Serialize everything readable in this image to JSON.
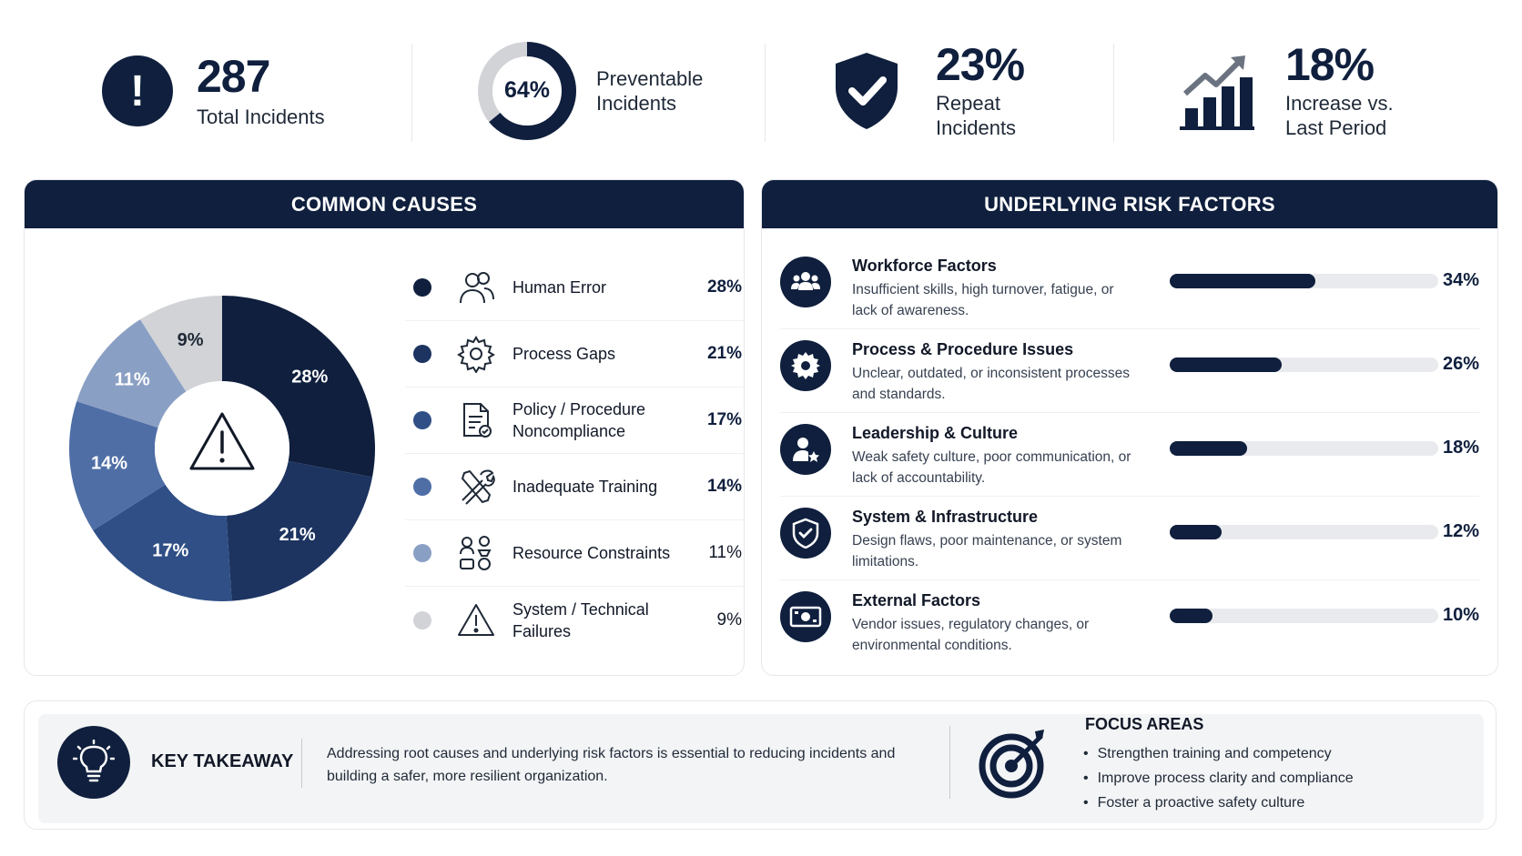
{
  "kpis": {
    "total": {
      "value": "287",
      "label": "Total Incidents",
      "icon": "exclamation-icon"
    },
    "preventable": {
      "value": "64%",
      "fraction": 0.64,
      "label_line1": "Preventable",
      "label_line2": "Incidents"
    },
    "repeat": {
      "value": "23%",
      "label_line1": "Repeat",
      "label_line2": "Incidents",
      "icon": "shield-check-icon"
    },
    "increase": {
      "value": "18%",
      "label_line1": "Increase vs.",
      "label_line2": "Last Period",
      "icon": "growth-chart-icon"
    }
  },
  "causes_panel": {
    "title": "COMMON CAUSES"
  },
  "risk_panel": {
    "title": "UNDERLYING RISK FACTORS"
  },
  "causes": [
    {
      "label": "Human Error",
      "value": "28%",
      "icon": "people-icon"
    },
    {
      "label": "Process Gaps",
      "value": "21%",
      "icon": "gear-icon"
    },
    {
      "label": "Policy / Procedure Noncompliance",
      "value": "17%",
      "icon": "document-check-icon"
    },
    {
      "label": "Inadequate Training",
      "value": "14%",
      "icon": "tools-icon"
    },
    {
      "label": "Resource Constraints",
      "value": "11%",
      "icon": "resources-icon"
    },
    {
      "label": "System / Technical Failures",
      "value": "9%",
      "icon": "warning-icon"
    }
  ],
  "risk_factors": [
    {
      "title": "Workforce Factors",
      "desc": "Insufficient skills, high turnover, fatigue, or lack of awareness.",
      "value": "34%",
      "icon": "group-icon"
    },
    {
      "title": "Process & Procedure Issues",
      "desc": "Unclear, outdated, or inconsistent processes and standards.",
      "value": "26%",
      "icon": "gear-icon"
    },
    {
      "title": "Leadership & Culture",
      "desc": "Weak safety culture, poor communication, or lack of accountability.",
      "value": "18%",
      "icon": "leader-star-icon"
    },
    {
      "title": "System & Infrastructure",
      "desc": "Design flaws, poor maintenance, or system limitations.",
      "value": "12%",
      "icon": "shield-check-icon"
    },
    {
      "title": "External Factors",
      "desc": "Vendor issues, regulatory changes, or environmental conditions.",
      "value": "10%",
      "icon": "money-icon"
    }
  ],
  "takeaway": {
    "title": "KEY TAKEAWAY",
    "text": "Addressing root causes and underlying risk factors is essential to reducing incidents and building a safer, more resilient organization.",
    "icon": "lightbulb-icon"
  },
  "focus": {
    "title": "FOCUS AREAS",
    "items": [
      "Strengthen training and competency",
      "Improve process clarity and compliance",
      "Foster a proactive safety culture"
    ],
    "icon": "target-icon"
  },
  "colors": {
    "navy": "#0f1f3d",
    "slices": [
      "#0f1f3d",
      "#1d3461",
      "#2f4f86",
      "#4f6ea6",
      "#8a9fc4",
      "#d1d3d7"
    ],
    "dots": [
      "#0f1f3d",
      "#1d3461",
      "#2f4f86",
      "#4f6ea6",
      "#8a9fc4",
      "#d1d3d7"
    ]
  },
  "chart_data": [
    {
      "type": "pie",
      "title": "COMMON CAUSES",
      "categories": [
        "Human Error",
        "Process Gaps",
        "Policy / Procedure Noncompliance",
        "Inadequate Training",
        "Resource Constraints",
        "System / Technical Failures"
      ],
      "values": [
        28,
        21,
        17,
        14,
        11,
        9
      ],
      "labels": [
        "28%",
        "21%",
        "17%",
        "14%",
        "11%",
        "9%"
      ],
      "donut": true
    },
    {
      "type": "bar",
      "orientation": "horizontal",
      "title": "UNDERLYING RISK FACTORS",
      "categories": [
        "Workforce Factors",
        "Process & Procedure Issues",
        "Leadership & Culture",
        "System & Infrastructure",
        "External Factors"
      ],
      "values": [
        34,
        26,
        18,
        12,
        10
      ],
      "xlim": [
        0,
        100
      ]
    }
  ]
}
